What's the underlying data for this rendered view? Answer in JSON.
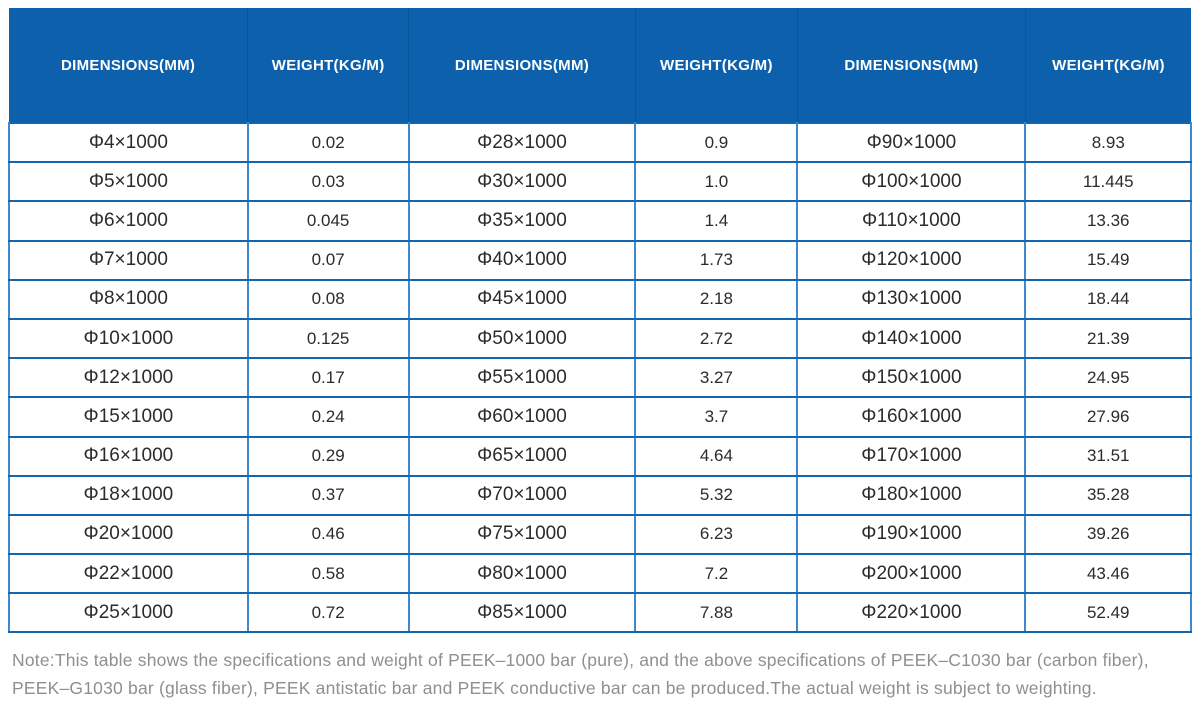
{
  "table": {
    "column_headers": [
      "DIMENSIONS(MM)",
      "WEIGHT(KG/M)",
      "DIMENSIONS(MM)",
      "WEIGHT(KG/M)",
      "DIMENSIONS(MM)",
      "WEIGHT(KG/M)"
    ],
    "rows": [
      [
        "Φ4×1000",
        "0.02",
        "Φ28×1000",
        "0.9",
        "Φ90×1000",
        "8.93"
      ],
      [
        "Φ5×1000",
        "0.03",
        "Φ30×1000",
        "1.0",
        "Φ100×1000",
        "11.445"
      ],
      [
        "Φ6×1000",
        "0.045",
        "Φ35×1000",
        "1.4",
        "Φ110×1000",
        "13.36"
      ],
      [
        "Φ7×1000",
        "0.07",
        "Φ40×1000",
        "1.73",
        "Φ120×1000",
        "15.49"
      ],
      [
        "Φ8×1000",
        "0.08",
        "Φ45×1000",
        "2.18",
        "Φ130×1000",
        "18.44"
      ],
      [
        "Φ10×1000",
        "0.125",
        "Φ50×1000",
        "2.72",
        "Φ140×1000",
        "21.39"
      ],
      [
        "Φ12×1000",
        "0.17",
        "Φ55×1000",
        "3.27",
        "Φ150×1000",
        "24.95"
      ],
      [
        "Φ15×1000",
        "0.24",
        "Φ60×1000",
        "3.7",
        "Φ160×1000",
        "27.96"
      ],
      [
        "Φ16×1000",
        "0.29",
        "Φ65×1000",
        "4.64",
        "Φ170×1000",
        "31.51"
      ],
      [
        "Φ18×1000",
        "0.37",
        "Φ70×1000",
        "5.32",
        "Φ180×1000",
        "35.28"
      ],
      [
        "Φ20×1000",
        "0.46",
        "Φ75×1000",
        "6.23",
        "Φ190×1000",
        "39.26"
      ],
      [
        "Φ22×1000",
        "0.58",
        "Φ80×1000",
        "7.2",
        "Φ200×1000",
        "43.46"
      ],
      [
        "Φ25×1000",
        "0.72",
        "Φ85×1000",
        "7.88",
        "Φ220×1000",
        "52.49"
      ]
    ]
  },
  "note": {
    "line1": "Note:This table shows the specifications and weight of PEEK–1000 bar (pure), and the above specifications of PEEK–C1030 bar (carbon fiber),",
    "line2": "PEEK–G1030 bar (glass fiber), PEEK antistatic bar and PEEK conductive bar can be produced.The actual weight is subject to weighting."
  },
  "colors": {
    "header_bg": "#0d61ac",
    "header_text": "#ffffff",
    "grid_horizontal": "#1266ae",
    "grid_vertical": "#3d89cb",
    "body_text": "#2b2b2b",
    "note_text": "#8f8f8f"
  }
}
